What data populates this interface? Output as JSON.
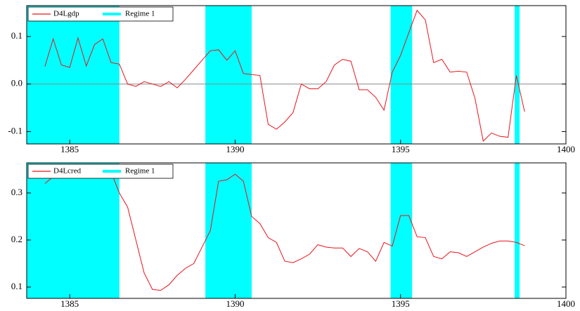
{
  "chart_data": [
    {
      "type": "line",
      "x": [
        1384.25,
        1384.5,
        1384.75,
        1385,
        1385.25,
        1385.5,
        1385.75,
        1386,
        1386.25,
        1386.5,
        1386.75,
        1387,
        1387.25,
        1387.5,
        1387.75,
        1388,
        1388.25,
        1388.5,
        1388.75,
        1389,
        1389.25,
        1389.5,
        1389.75,
        1390,
        1390.25,
        1390.5,
        1390.75,
        1391,
        1391.25,
        1391.5,
        1391.75,
        1392,
        1392.25,
        1392.5,
        1392.75,
        1393,
        1393.25,
        1393.5,
        1393.75,
        1394,
        1394.25,
        1394.5,
        1394.75,
        1395,
        1395.25,
        1395.5,
        1395.75,
        1396,
        1396.25,
        1396.5,
        1396.75,
        1397,
        1397.25,
        1397.5,
        1397.75,
        1398,
        1398.25,
        1398.5,
        1398.75
      ],
      "series": [
        {
          "name": "D4Lgdp",
          "color": "#e8141c",
          "values": [
            0.037,
            0.095,
            0.04,
            0.035,
            0.097,
            0.038,
            0.083,
            0.095,
            0.045,
            0.042,
            0.0,
            -0.005,
            0.005,
            0.0,
            -0.005,
            0.005,
            -0.008,
            0.01,
            0.03,
            0.05,
            0.07,
            0.072,
            0.05,
            0.07,
            0.022,
            0.02,
            0.018,
            -0.085,
            -0.095,
            -0.08,
            -0.06,
            0.0,
            -0.01,
            -0.01,
            0.005,
            0.04,
            0.052,
            0.048,
            -0.012,
            -0.012,
            -0.028,
            -0.055,
            0.025,
            0.06,
            0.108,
            0.155,
            0.135,
            0.045,
            0.052,
            0.025,
            0.027,
            0.025,
            -0.03,
            -0.12,
            -0.103,
            -0.11,
            -0.112,
            0.018,
            -0.058
          ]
        }
      ],
      "regimes": {
        "name": "Regime 1",
        "color": "#00ffff",
        "spans": [
          [
            1383.7,
            1386.5
          ],
          [
            1389.1,
            1390.5
          ],
          [
            1394.7,
            1395.35
          ],
          [
            1398.45,
            1398.6
          ]
        ]
      },
      "xlim": [
        1383.7,
        1400
      ],
      "xticks": [
        1385,
        1390,
        1395,
        1400
      ],
      "ylim": [
        -0.126,
        0.165
      ],
      "yticks": [
        -0.1,
        {
          "value": 0,
          "label": "0.0"
        },
        0.1
      ],
      "zero_line": true
    },
    {
      "type": "line",
      "x": [
        1384.25,
        1384.5,
        1384.75,
        1385,
        1385.25,
        1385.5,
        1385.75,
        1386,
        1386.25,
        1386.5,
        1386.75,
        1387,
        1387.25,
        1387.5,
        1387.75,
        1388,
        1388.25,
        1388.5,
        1388.75,
        1389,
        1389.25,
        1389.5,
        1389.75,
        1390,
        1390.25,
        1390.5,
        1390.75,
        1391,
        1391.25,
        1391.5,
        1391.75,
        1392,
        1392.25,
        1392.5,
        1392.75,
        1393,
        1393.25,
        1393.5,
        1393.75,
        1394,
        1394.25,
        1394.5,
        1394.75,
        1395,
        1395.25,
        1395.5,
        1395.75,
        1396,
        1396.25,
        1396.5,
        1396.75,
        1397,
        1397.25,
        1397.5,
        1397.75,
        1398,
        1398.25,
        1398.5,
        1398.75
      ],
      "series": [
        {
          "name": "D4Lcred",
          "color": "#e8141c",
          "values": [
            0.32,
            0.335,
            0.34,
            0.34,
            0.345,
            0.348,
            0.35,
            0.355,
            0.345,
            0.3,
            0.27,
            0.2,
            0.13,
            0.095,
            0.093,
            0.105,
            0.125,
            0.14,
            0.15,
            0.185,
            0.22,
            0.325,
            0.328,
            0.34,
            0.325,
            0.25,
            0.235,
            0.205,
            0.195,
            0.155,
            0.152,
            0.16,
            0.17,
            0.19,
            0.185,
            0.183,
            0.183,
            0.165,
            0.182,
            0.175,
            0.155,
            0.195,
            0.187,
            0.252,
            0.252,
            0.207,
            0.205,
            0.165,
            0.16,
            0.175,
            0.173,
            0.165,
            0.175,
            0.185,
            0.193,
            0.198,
            0.198,
            0.195,
            0.188
          ]
        }
      ],
      "regimes": {
        "name": "Regime 1",
        "color": "#00ffff",
        "spans": [
          [
            1383.7,
            1386.5
          ],
          [
            1389.1,
            1390.5
          ],
          [
            1394.7,
            1395.35
          ],
          [
            1398.45,
            1398.6
          ]
        ]
      },
      "xlim": [
        1383.7,
        1400
      ],
      "xticks": [
        1385,
        1390,
        1395,
        1400
      ],
      "ylim": [
        0.076,
        0.364
      ],
      "yticks": [
        0.1,
        0.2,
        0.3
      ],
      "zero_line": false
    }
  ]
}
